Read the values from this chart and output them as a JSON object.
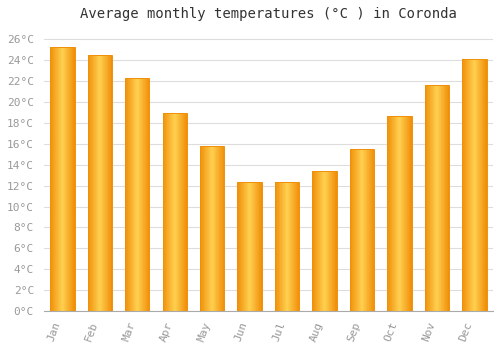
{
  "title": "Average monthly temperatures (°C ) in Coronda",
  "months": [
    "Jan",
    "Feb",
    "Mar",
    "Apr",
    "May",
    "Jun",
    "Jul",
    "Aug",
    "Sep",
    "Oct",
    "Nov",
    "Dec"
  ],
  "values": [
    25.3,
    24.5,
    22.3,
    19.0,
    15.8,
    12.3,
    12.3,
    13.4,
    15.5,
    18.7,
    21.6,
    24.1
  ],
  "bar_color_center": "#FFD050",
  "bar_color_edge": "#F0900A",
  "background_color": "#FFFFFF",
  "grid_color": "#DDDDDD",
  "ylim": [
    0,
    27
  ],
  "yticks": [
    0,
    2,
    4,
    6,
    8,
    10,
    12,
    14,
    16,
    18,
    20,
    22,
    24,
    26
  ],
  "title_fontsize": 10,
  "tick_fontsize": 8,
  "tick_color": "#999999",
  "font_family": "monospace",
  "bar_width": 0.65
}
